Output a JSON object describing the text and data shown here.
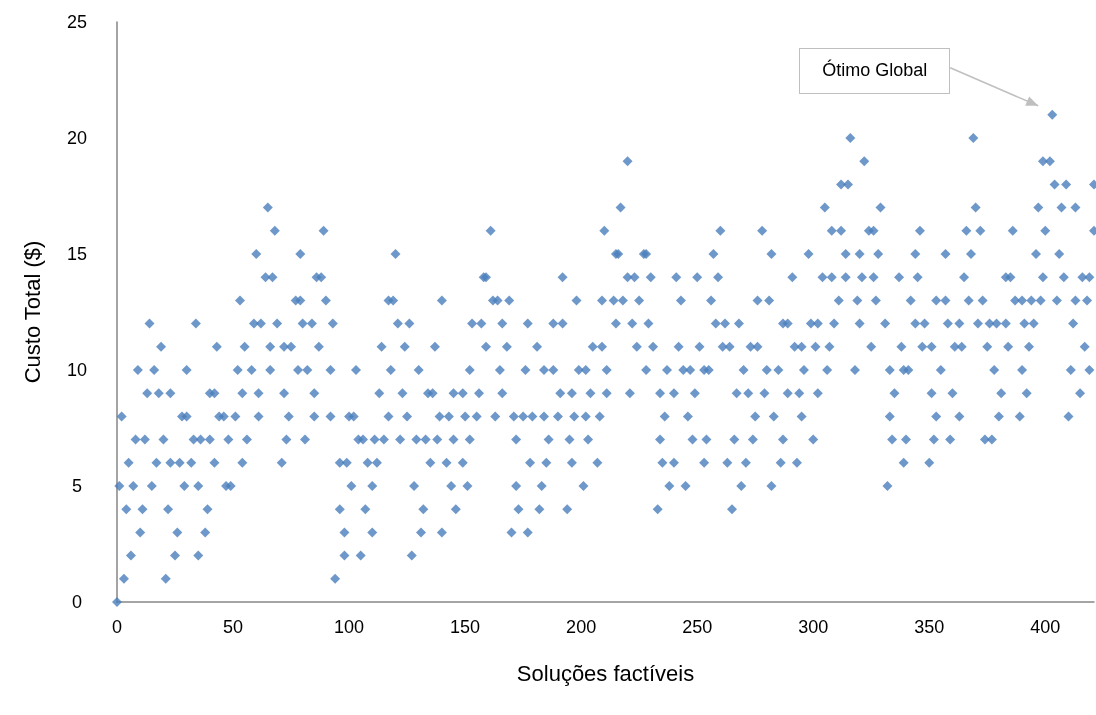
{
  "chart_data": {
    "type": "scatter",
    "xlabel": "Soluções factíveis",
    "ylabel": "Custo Total ($)",
    "marker": "diamond",
    "grid": false,
    "xlim": [
      0,
      421
    ],
    "xticks": [
      0,
      50,
      100,
      150,
      200,
      250,
      300,
      350,
      400
    ],
    "ylim": [
      0,
      25
    ],
    "yticks": [
      0,
      5,
      10,
      15,
      20,
      25
    ],
    "annotations": [
      "Ótimo Global"
    ],
    "series": [
      {
        "color": "#4a7ebb",
        "x": [
          0,
          3,
          6,
          10,
          4,
          1,
          5,
          2,
          8,
          9,
          14,
          19,
          16,
          13,
          18,
          23,
          12,
          20,
          11,
          15,
          7,
          17,
          23,
          21,
          25,
          26,
          22,
          27,
          29,
          28,
          30,
          30,
          32,
          33,
          34,
          35,
          35,
          36,
          38,
          39,
          40,
          40,
          42,
          42,
          43,
          44,
          46,
          47,
          48,
          49,
          51,
          52,
          53,
          54,
          54,
          55,
          56,
          58,
          59,
          60,
          61,
          61,
          62,
          64,
          65,
          66,
          66,
          67,
          68,
          89,
          79,
          120,
          86,
          88,
          77,
          79,
          90,
          117,
          119,
          140,
          69,
          80,
          84,
          93,
          121,
          126,
          72,
          75,
          87,
          114,
          124,
          137,
          78,
          82,
          92,
          103,
          118,
          130,
          72,
          85,
          113,
          123,
          134,
          136,
          74,
          85,
          92,
          100,
          102,
          117,
          125,
          139,
          73,
          81,
          104,
          106,
          111,
          115,
          122,
          129,
          133,
          138,
          71,
          96,
          99,
          108,
          112,
          135,
          101,
          110,
          128,
          96,
          107,
          132,
          98,
          110,
          131,
          140,
          98,
          105,
          127,
          94,
          161,
          210,
          158,
          159,
          192,
          162,
          164,
          169,
          198,
          209,
          153,
          157,
          166,
          177,
          188,
          192,
          159,
          168,
          181,
          205,
          209,
          152,
          165,
          176,
          184,
          188,
          199,
          202,
          211,
          145,
          149,
          156,
          166,
          191,
          196,
          204,
          211,
          143,
          150,
          155,
          163,
          171,
          175,
          179,
          184,
          190,
          197,
          202,
          208,
          145,
          152,
          172,
          186,
          195,
          203,
          142,
          149,
          178,
          185,
          196,
          207,
          144,
          151,
          172,
          183,
          201,
          146,
          173,
          182,
          194,
          170,
          177,
          220,
          217,
          260,
          278,
          215,
          216,
          227,
          228,
          257,
          282,
          220,
          223,
          230,
          241,
          250,
          259,
          214,
          218,
          225,
          243,
          256,
          276,
          281,
          215,
          222,
          229,
          258,
          262,
          268,
          224,
          231,
          242,
          251,
          261,
          264,
          273,
          276,
          228,
          237,
          244,
          247,
          253,
          255,
          270,
          280,
          221,
          234,
          240,
          249,
          267,
          272,
          279,
          236,
          246,
          275,
          283,
          234,
          248,
          254,
          266,
          274,
          235,
          240,
          253,
          263,
          271,
          238,
          245,
          269,
          282,
          233,
          265,
          316,
          322,
          312,
          315,
          305,
          329,
          308,
          312,
          324,
          326,
          346,
          298,
          314,
          320,
          328,
          344,
          291,
          304,
          308,
          314,
          321,
          326,
          337,
          345,
          311,
          319,
          327,
          342,
          353,
          287,
          289,
          299,
          302,
          309,
          320,
          331,
          344,
          348,
          292,
          295,
          301,
          307,
          325,
          338,
          347,
          351,
          285,
          296,
          306,
          318,
          333,
          339,
          341,
          289,
          294,
          302,
          335,
          351,
          295,
          333,
          353,
          287,
          300,
          334,
          340,
          352,
          286,
          293,
          339,
          350,
          332,
          403,
          369,
          399,
          402,
          404,
          409,
          421,
          370,
          397,
          407,
          413,
          366,
          372,
          386,
          400,
          421,
          357,
          368,
          396,
          406,
          365,
          383,
          385,
          399,
          408,
          416,
          419,
          357,
          367,
          373,
          387,
          390,
          394,
          398,
          405,
          413,
          418,
          358,
          363,
          371,
          376,
          379,
          383,
          391,
          395,
          412,
          361,
          364,
          375,
          384,
          393,
          417,
          355,
          378,
          390,
          411,
          419,
          360,
          381,
          392,
          415,
          363,
          380,
          389,
          410,
          359,
          374,
          377
        ],
        "values": [
          0,
          1,
          2,
          3,
          4,
          5,
          6,
          8,
          7,
          10,
          12,
          11,
          10,
          9,
          9,
          9,
          7,
          7,
          4,
          5,
          5,
          6,
          6,
          1,
          2,
          3,
          4,
          6,
          5,
          8,
          8,
          10,
          6,
          7,
          12,
          2,
          5,
          7,
          3,
          4,
          7,
          9,
          6,
          9,
          11,
          8,
          8,
          5,
          7,
          5,
          8,
          10,
          13,
          6,
          9,
          11,
          7,
          10,
          12,
          15,
          8,
          9,
          12,
          14,
          17,
          10,
          11,
          14,
          16,
          16,
          15,
          15,
          14,
          14,
          13,
          13,
          13,
          13,
          13,
          13,
          12,
          12,
          12,
          12,
          12,
          12,
          11,
          11,
          11,
          11,
          11,
          11,
          10,
          10,
          10,
          10,
          10,
          10,
          9,
          9,
          9,
          9,
          9,
          9,
          8,
          8,
          8,
          8,
          8,
          8,
          8,
          8,
          7,
          7,
          7,
          7,
          7,
          7,
          7,
          7,
          7,
          7,
          6,
          6,
          6,
          6,
          6,
          6,
          5,
          5,
          5,
          4,
          4,
          4,
          3,
          3,
          3,
          3,
          2,
          2,
          2,
          1,
          16,
          16,
          14,
          14,
          14,
          13,
          13,
          13,
          13,
          13,
          12,
          12,
          12,
          12,
          12,
          12,
          11,
          11,
          11,
          11,
          11,
          10,
          10,
          10,
          10,
          10,
          10,
          10,
          10,
          9,
          9,
          9,
          9,
          9,
          9,
          9,
          9,
          8,
          8,
          8,
          8,
          8,
          8,
          8,
          8,
          8,
          8,
          8,
          8,
          7,
          7,
          7,
          7,
          7,
          7,
          6,
          6,
          6,
          6,
          6,
          6,
          5,
          5,
          5,
          5,
          5,
          4,
          4,
          4,
          4,
          3,
          3,
          19,
          17,
          16,
          16,
          15,
          15,
          15,
          15,
          15,
          15,
          14,
          14,
          14,
          14,
          14,
          14,
          13,
          13,
          13,
          13,
          13,
          13,
          13,
          12,
          12,
          12,
          12,
          12,
          12,
          11,
          11,
          11,
          11,
          11,
          11,
          11,
          11,
          10,
          10,
          10,
          10,
          10,
          10,
          10,
          10,
          9,
          9,
          9,
          9,
          9,
          9,
          9,
          8,
          8,
          8,
          8,
          7,
          7,
          7,
          7,
          7,
          6,
          6,
          6,
          6,
          6,
          5,
          5,
          5,
          5,
          4,
          4,
          20,
          19,
          18,
          18,
          17,
          17,
          16,
          16,
          16,
          16,
          16,
          15,
          15,
          15,
          15,
          15,
          14,
          14,
          14,
          14,
          14,
          14,
          14,
          14,
          13,
          13,
          13,
          13,
          13,
          12,
          12,
          12,
          12,
          12,
          12,
          12,
          12,
          12,
          11,
          11,
          11,
          11,
          11,
          11,
          11,
          11,
          10,
          10,
          10,
          10,
          10,
          10,
          10,
          9,
          9,
          9,
          9,
          9,
          8,
          8,
          8,
          7,
          7,
          7,
          7,
          7,
          6,
          6,
          6,
          6,
          5,
          21,
          20,
          19,
          19,
          18,
          18,
          18,
          17,
          17,
          17,
          17,
          16,
          16,
          16,
          16,
          16,
          15,
          15,
          15,
          15,
          14,
          14,
          14,
          14,
          14,
          14,
          14,
          13,
          13,
          13,
          13,
          13,
          13,
          13,
          13,
          13,
          13,
          12,
          12,
          12,
          12,
          12,
          12,
          12,
          12,
          12,
          11,
          11,
          11,
          11,
          11,
          11,
          10,
          10,
          10,
          10,
          10,
          9,
          9,
          9,
          9,
          8,
          8,
          8,
          8,
          7,
          7,
          7
        ]
      }
    ]
  }
}
